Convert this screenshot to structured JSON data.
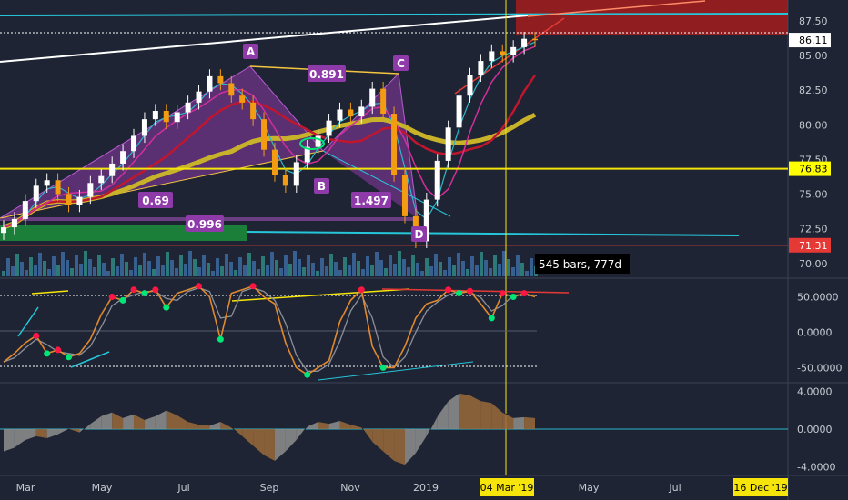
{
  "chart_data": [
    {
      "type": "candlestick",
      "panel": "price",
      "y_axis_ticks": [
        70.0,
        72.5,
        75.0,
        77.5,
        80.0,
        82.5,
        85.0,
        87.5
      ],
      "ylim": [
        69.0,
        89.0
      ],
      "price_labels": [
        {
          "text": "86.11",
          "value": 86.11,
          "color": "#ffffff",
          "text_color": "#000000"
        },
        {
          "text": "76.83",
          "value": 76.83,
          "color": "#ffff00",
          "text_color": "#000000"
        },
        {
          "text": "71.31",
          "value": 71.31,
          "color": "#e53935",
          "text_color": "#ffffff"
        }
      ],
      "horizontal_lines": [
        {
          "value": 76.83,
          "color": "#f5e50a"
        },
        {
          "value": 71.31,
          "color": "#e53935"
        }
      ],
      "pattern_points": [
        {
          "name": "A",
          "label": "A",
          "value": 83.5
        },
        {
          "name": "B",
          "label": "B",
          "value": 75.5
        },
        {
          "name": "C",
          "label": "C",
          "value": 83.0
        },
        {
          "name": "D",
          "label": "D",
          "value": 71.4
        }
      ],
      "ratios": [
        "0.891",
        "0.69",
        "1.497",
        "0.996"
      ],
      "bars_info": "545 bars, 777d",
      "close_series": [
        72.6,
        73.2,
        74.5,
        75.6,
        76.0,
        75.0,
        74.2,
        74.8,
        75.8,
        76.3,
        77.2,
        78.1,
        79.2,
        80.4,
        81.0,
        80.2,
        80.9,
        81.6,
        82.4,
        83.5,
        83.0,
        82.1,
        81.6,
        80.4,
        78.2,
        76.4,
        75.6,
        77.3,
        78.4,
        79.2,
        80.3,
        81.1,
        80.6,
        81.3,
        82.6,
        80.8,
        76.4,
        73.4,
        71.6,
        74.6,
        77.4,
        79.8,
        82.1,
        83.6,
        84.6,
        85.3,
        85.0,
        85.6,
        86.2,
        86.11
      ],
      "colors": {
        "background": "#1e2433",
        "up": "#ffffff",
        "down": "#f39c12",
        "ma_long": "#c8b22a",
        "ma_mid": "#c0162e",
        "ma_short": "#2eb8c9",
        "pattern_fill": "#8e3aa8"
      }
    },
    {
      "type": "line",
      "panel": "oscillator",
      "y_axis_ticks": [
        "50.0000",
        "0.0000",
        "-50.0000"
      ],
      "ylim": [
        -70,
        75
      ],
      "series": [
        {
          "values": [
            -42,
            -30,
            -15,
            -5,
            -30,
            -25,
            -35,
            -30,
            -10,
            25,
            50,
            45,
            60,
            55,
            60,
            35,
            55,
            60,
            65,
            50,
            -10,
            55,
            60,
            65,
            50,
            40,
            -15,
            -50,
            -60,
            -50,
            -40,
            15,
            45,
            60,
            -20,
            -50,
            -50,
            -20,
            20,
            40,
            45,
            60,
            55,
            58,
            40,
            20,
            55,
            50,
            55,
            50
          ]
        }
      ],
      "colors": {
        "line": "#e0892e",
        "line2": "#8c8f99",
        "peaks": "#ff1744",
        "troughs": "#00e676"
      }
    },
    {
      "type": "area",
      "panel": "macd",
      "y_axis_ticks": [
        "4.0000",
        "0.0000",
        "-4.0000"
      ],
      "ylim": [
        -4.8,
        4.8
      ],
      "series": [
        {
          "values": [
            -2.4,
            -2.0,
            -1.2,
            -0.8,
            -1.0,
            -0.6,
            0.0,
            -0.4,
            0.6,
            1.4,
            1.8,
            1.2,
            1.6,
            1.0,
            1.4,
            2.0,
            1.5,
            0.8,
            0.5,
            0.4,
            0.8,
            0.2,
            -0.8,
            -1.8,
            -2.8,
            -3.4,
            -2.4,
            -1.2,
            0.3,
            0.8,
            0.6,
            0.9,
            0.5,
            0.2,
            -1.4,
            -2.4,
            -3.4,
            -3.8,
            -2.6,
            -0.8,
            1.4,
            3.0,
            3.8,
            3.6,
            3.0,
            2.8,
            1.8,
            1.2,
            1.3,
            1.2
          ]
        }
      ],
      "colors": {
        "up": "#8f8f8f",
        "down": "#9a6a3a",
        "zero": "#2eb8c9"
      }
    }
  ],
  "x_axis": {
    "labels": [
      "Mar",
      "May",
      "Jul",
      "Sep",
      "Nov",
      "2019",
      "May",
      "Jul"
    ],
    "highlight_labels": [
      "04 Mar '19",
      "16 Dec '19"
    ]
  }
}
